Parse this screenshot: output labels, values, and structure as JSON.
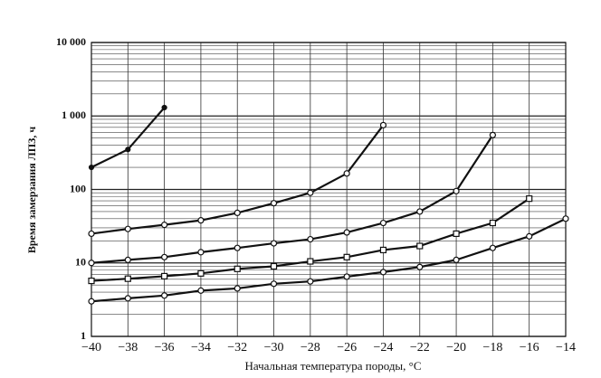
{
  "chart_data": {
    "type": "line",
    "xlabel": "Начальная температура породы, °C",
    "ylabel": "Время замерзания ЛПЗ, ч",
    "xlim": [
      -40,
      -14
    ],
    "xticks": [
      {
        "value": -40,
        "label": "−40"
      },
      {
        "value": -38,
        "label": "−38"
      },
      {
        "value": -36,
        "label": "−36"
      },
      {
        "value": -34,
        "label": "−34"
      },
      {
        "value": -32,
        "label": "−32"
      },
      {
        "value": -30,
        "label": "−30"
      },
      {
        "value": -28,
        "label": "−28"
      },
      {
        "value": -26,
        "label": "−26"
      },
      {
        "value": -24,
        "label": "−24"
      },
      {
        "value": -22,
        "label": "−22"
      },
      {
        "value": -20,
        "label": "−20"
      },
      {
        "value": -18,
        "label": "−18"
      },
      {
        "value": -16,
        "label": "−16"
      },
      {
        "value": -14,
        "label": "−14"
      }
    ],
    "ylim": [
      1,
      10000
    ],
    "yticks": [
      1,
      10,
      100,
      {
        "value": 1000,
        "label": "1 000"
      },
      {
        "value": 10000,
        "label": "10 000"
      }
    ],
    "log_y": true,
    "grid": true,
    "series": [
      {
        "color": "#111111",
        "marker": "dot",
        "x": [
          -40,
          -38,
          -36
        ],
        "values": [
          200,
          350,
          1300
        ]
      },
      {
        "color": "#111111",
        "marker": "circle",
        "x": [
          -40,
          -38,
          -36,
          -34,
          -32,
          -30,
          -28,
          -26,
          -24
        ],
        "values": [
          25,
          29,
          33,
          38,
          48,
          65,
          90,
          165,
          750
        ]
      },
      {
        "color": "#111111",
        "marker": "circle",
        "x": [
          -40,
          -38,
          -36,
          -34,
          -32,
          -30,
          -28,
          -26,
          -24,
          -22,
          -20,
          -18
        ],
        "values": [
          10,
          11,
          12,
          14,
          16,
          18.5,
          21,
          26,
          35,
          50,
          95,
          550
        ]
      },
      {
        "color": "#111111",
        "marker": "square",
        "x": [
          -40,
          -38,
          -36,
          -34,
          -32,
          -30,
          -28,
          -26,
          -24,
          -22,
          -20,
          -18,
          -16
        ],
        "values": [
          5.7,
          6.1,
          6.6,
          7.2,
          8.3,
          9,
          10.5,
          12,
          15,
          17,
          25,
          35,
          75
        ]
      },
      {
        "color": "#111111",
        "marker": "circle",
        "x": [
          -40,
          -38,
          -36,
          -34,
          -32,
          -30,
          -28,
          -26,
          -24,
          -22,
          -20,
          -18,
          -16,
          -14
        ],
        "values": [
          3,
          3.3,
          3.6,
          4.2,
          4.5,
          5.2,
          5.6,
          6.5,
          7.5,
          8.8,
          11,
          16,
          23,
          40
        ]
      }
    ]
  }
}
